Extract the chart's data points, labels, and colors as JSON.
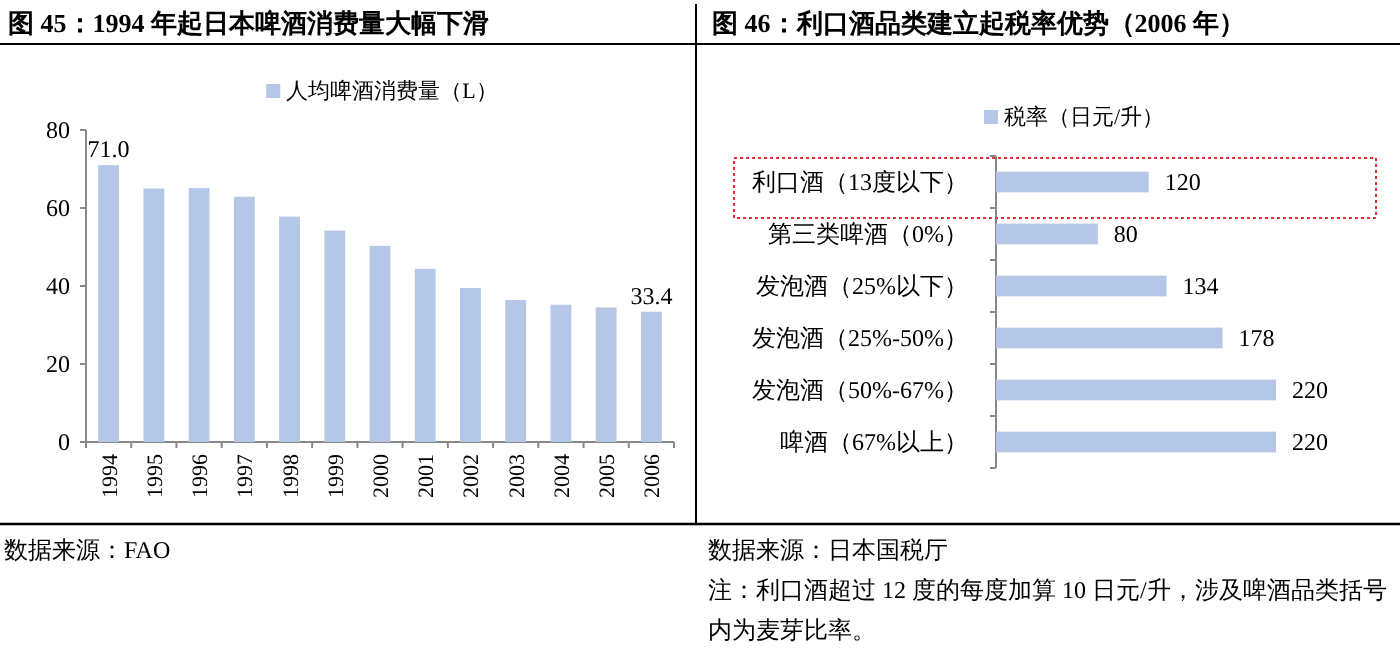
{
  "chart_data": [
    {
      "type": "bar",
      "title": "图 45：1994 年起日本啤酒消费量大幅下滑",
      "categories": [
        "1994",
        "1995",
        "1996",
        "1997",
        "1998",
        "1999",
        "2000",
        "2001",
        "2002",
        "2003",
        "2004",
        "2005",
        "2006"
      ],
      "series": [
        {
          "name": "人均啤酒消费量（L）",
          "color": "#b4c7e7",
          "values": [
            71.0,
            65.0,
            65.1,
            62.9,
            57.8,
            54.2,
            50.3,
            44.4,
            39.5,
            36.4,
            35.2,
            34.5,
            33.4
          ],
          "value_labels": [
            "71.0",
            null,
            null,
            null,
            null,
            null,
            null,
            null,
            null,
            null,
            null,
            null,
            "33.4"
          ]
        }
      ],
      "ylim": [
        0,
        80
      ],
      "yticks": [
        0,
        20,
        40,
        60,
        80
      ],
      "legend": "top",
      "annotations": [
        "数据来源：FAO"
      ]
    },
    {
      "type": "bar",
      "orientation": "horizontal",
      "title": "图 46：利口酒品类建立起税率优势（2006 年）",
      "categories": [
        "利口酒（13度以下）",
        "第三类啤酒（0%）",
        "发泡酒（25%以下）",
        "发泡酒（25%-50%）",
        "发泡酒（50%-67%）",
        "啤酒（67%以上）"
      ],
      "series": [
        {
          "name": "税率（日元/升）",
          "color": "#b4c7e7",
          "values": [
            120,
            80,
            134,
            178,
            220,
            220
          ]
        }
      ],
      "data_labels": true,
      "legend": "top",
      "annotations": [
        "数据来源：日本国税厅",
        "注：利口酒超过 12 度的每度加算 10 日元/升，涉及啤酒品类括号内为麦芽比率。"
      ]
    }
  ]
}
